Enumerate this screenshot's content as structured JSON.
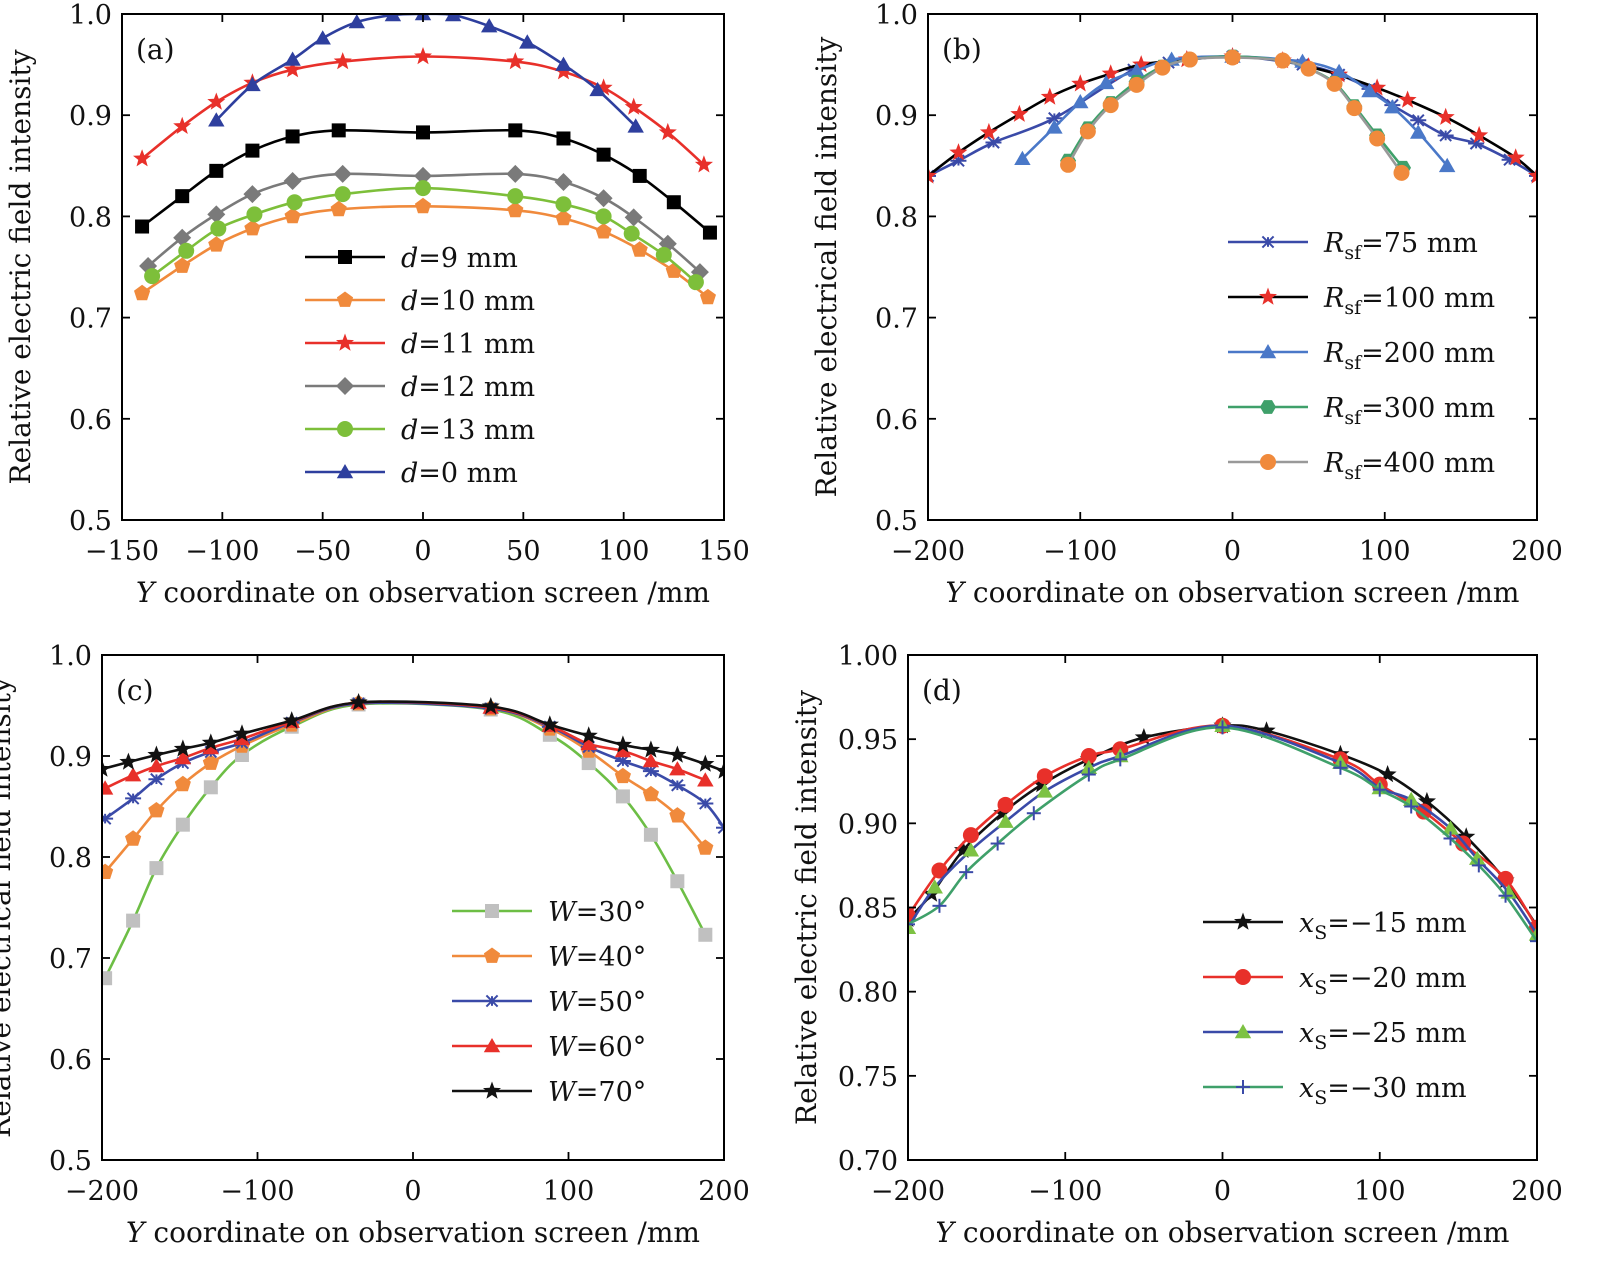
{
  "chart_data": [
    {
      "type": "line",
      "panel_label": "(a)",
      "xlabel_prefix": "Y",
      "xlabel": "coordinate on observation screen /mm",
      "ylabel": "Relative electric field intensity",
      "xlim": [
        -150,
        150
      ],
      "ylim": [
        0.5,
        1.0
      ],
      "xticks": [
        -150,
        -100,
        -50,
        0,
        50,
        100,
        150
      ],
      "xtick_labels": [
        "−150",
        "−100",
        "−50",
        "0",
        "50",
        "100",
        "150"
      ],
      "yticks": [
        0.5,
        0.6,
        0.7,
        0.8,
        0.9,
        1.0
      ],
      "ytick_labels": [
        "0.5",
        "0.6",
        "0.7",
        "0.8",
        "0.9",
        "1.0"
      ],
      "legend_position": "center",
      "series": [
        {
          "var": "d",
          "rest": "=9 mm",
          "color": "#000000",
          "marker": "square",
          "x": [
            -140,
            -120,
            -103,
            -85,
            -65,
            -42,
            0,
            46,
            70,
            90,
            108,
            125,
            143
          ],
          "y": [
            0.79,
            0.82,
            0.845,
            0.865,
            0.879,
            0.885,
            0.883,
            0.885,
            0.877,
            0.861,
            0.84,
            0.814,
            0.784
          ]
        },
        {
          "var": "d",
          "rest": "=10 mm",
          "color": "#F08A3C",
          "marker": "pentagon",
          "x": [
            -140,
            -120,
            -103,
            -85,
            -65,
            -42,
            0,
            46,
            70,
            90,
            108,
            125,
            142
          ],
          "y": [
            0.724,
            0.751,
            0.772,
            0.788,
            0.8,
            0.807,
            0.81,
            0.806,
            0.798,
            0.785,
            0.767,
            0.746,
            0.72
          ]
        },
        {
          "var": "d",
          "rest": "=11 mm",
          "color": "#E8302A",
          "marker": "star",
          "x": [
            -140,
            -120,
            -103,
            -85,
            -65,
            -40,
            0,
            46,
            70,
            90,
            105,
            122,
            140
          ],
          "y": [
            0.857,
            0.889,
            0.913,
            0.932,
            0.945,
            0.953,
            0.958,
            0.953,
            0.943,
            0.927,
            0.908,
            0.883,
            0.851
          ]
        },
        {
          "var": "d",
          "rest": "=12 mm",
          "color": "#7A7A7A",
          "marker": "diamond",
          "x": [
            -137,
            -120,
            -103,
            -85,
            -65,
            -40,
            0,
            46,
            70,
            90,
            105,
            122,
            138
          ],
          "y": [
            0.751,
            0.779,
            0.802,
            0.822,
            0.835,
            0.842,
            0.84,
            0.842,
            0.834,
            0.818,
            0.799,
            0.773,
            0.745
          ]
        },
        {
          "var": "d",
          "rest": "=13 mm",
          "color": "#7DBF3A",
          "marker": "circle",
          "x": [
            -135,
            -118,
            -102,
            -84,
            -64,
            -40,
            0,
            46,
            70,
            90,
            104,
            120,
            136
          ],
          "y": [
            0.741,
            0.766,
            0.788,
            0.802,
            0.814,
            0.822,
            0.828,
            0.82,
            0.812,
            0.8,
            0.783,
            0.762,
            0.735
          ]
        },
        {
          "var": "d",
          "rest": "=0 mm",
          "color": "#2E3F9E",
          "marker": "triangle",
          "x": [
            -103,
            -85,
            -65,
            -50,
            -33,
            -15,
            0,
            15,
            33,
            52,
            70,
            87,
            106
          ],
          "y": [
            0.895,
            0.93,
            0.955,
            0.976,
            0.992,
            0.999,
            1.0,
            0.999,
            0.988,
            0.972,
            0.95,
            0.925,
            0.889
          ]
        }
      ]
    },
    {
      "type": "line",
      "panel_label": "(b)",
      "xlabel_prefix": "Y",
      "xlabel": "coordinate on observation screen /mm",
      "ylabel": "Relative electrical field intensity",
      "xlim": [
        -200,
        200
      ],
      "ylim": [
        0.5,
        1.0
      ],
      "xticks": [
        -200,
        -100,
        0,
        100,
        200
      ],
      "xtick_labels": [
        "−200",
        "−100",
        "0",
        "100",
        "200"
      ],
      "yticks": [
        0.5,
        0.6,
        0.7,
        0.8,
        0.9,
        1.0
      ],
      "ytick_labels": [
        "0.5",
        "0.6",
        "0.7",
        "0.8",
        "0.9",
        "1.0"
      ],
      "legend_position": "lower-right",
      "series": [
        {
          "var": "R",
          "sub": "sf",
          "rest": "=75 mm",
          "color": "#3A4AA8",
          "marker": "asterisk",
          "x": [
            -200,
            -180,
            -157,
            -117,
            -65,
            -42,
            0,
            46,
            70,
            90,
            105,
            122,
            140,
            160,
            182,
            200
          ],
          "y": [
            0.84,
            0.855,
            0.873,
            0.897,
            0.945,
            0.952,
            0.958,
            0.95,
            0.94,
            0.926,
            0.91,
            0.895,
            0.88,
            0.872,
            0.856,
            0.84
          ]
        },
        {
          "var": "R",
          "sub": "sf",
          "rest": "=100 mm",
          "color": "#E8302A",
          "line_color": "#000000",
          "marker": "star",
          "x": [
            -200,
            -180,
            -160,
            -140,
            -120,
            -100,
            -80,
            -60,
            -30,
            0,
            33,
            50,
            70,
            95,
            115,
            140,
            162,
            186,
            200
          ],
          "y": [
            0.84,
            0.863,
            0.883,
            0.901,
            0.918,
            0.931,
            0.941,
            0.95,
            0.955,
            0.958,
            0.954,
            0.948,
            0.94,
            0.927,
            0.915,
            0.898,
            0.88,
            0.858,
            0.84
          ]
        },
        {
          "var": "R",
          "sub": "sf",
          "rest": "=200 mm",
          "color": "#4A78C8",
          "marker": "triangle",
          "x": [
            -138,
            -117,
            -100,
            -83,
            -63,
            -40,
            0,
            46,
            70,
            90,
            105,
            122,
            141
          ],
          "y": [
            0.857,
            0.888,
            0.913,
            0.932,
            0.944,
            0.955,
            0.958,
            0.953,
            0.943,
            0.924,
            0.908,
            0.883,
            0.85
          ]
        },
        {
          "var": "R",
          "sub": "sf",
          "rest": "=300 mm",
          "color": "#3FA06A",
          "marker": "hexagon",
          "x": [
            -108,
            -95,
            -80,
            -63,
            -46,
            -28,
            0,
            33,
            50,
            67,
            80,
            95,
            112
          ],
          "y": [
            0.855,
            0.887,
            0.912,
            0.933,
            0.948,
            0.955,
            0.958,
            0.954,
            0.946,
            0.932,
            0.909,
            0.88,
            0.848
          ]
        },
        {
          "var": "R",
          "sub": "sf",
          "rest": "=400 mm",
          "color": "#F08A3C",
          "line_color": "#999999",
          "marker": "circle",
          "x": [
            -108,
            -95,
            -80,
            -63,
            -46,
            -28,
            0,
            33,
            50,
            67,
            80,
            95,
            111
          ],
          "y": [
            0.851,
            0.884,
            0.91,
            0.93,
            0.947,
            0.955,
            0.957,
            0.954,
            0.946,
            0.931,
            0.907,
            0.877,
            0.843
          ]
        }
      ]
    },
    {
      "type": "line",
      "panel_label": "(c)",
      "xlabel_prefix": "Y",
      "xlabel": "coordinate on observation screen /mm",
      "ylabel": "Relative electrical field intensity",
      "xlim": [
        -200,
        200
      ],
      "ylim": [
        0.5,
        1.0
      ],
      "xticks": [
        -200,
        -100,
        0,
        100,
        200
      ],
      "xtick_labels": [
        "−200",
        "−100",
        "0",
        "100",
        "200"
      ],
      "yticks": [
        0.5,
        0.6,
        0.7,
        0.8,
        0.9,
        1.0
      ],
      "ytick_labels": [
        "0.5",
        "0.6",
        "0.7",
        "0.8",
        "0.9",
        "1.0"
      ],
      "legend_position": "lower-right",
      "series": [
        {
          "var": "W",
          "rest": "=30°",
          "color": "#C0C0C0",
          "line_color": "#6DBE45",
          "marker": "square",
          "x": [
            -198,
            -180,
            -165,
            -148,
            -130,
            -110,
            -78,
            -35,
            50,
            88,
            113,
            135,
            153,
            170,
            188
          ],
          "y": [
            0.68,
            0.737,
            0.789,
            0.832,
            0.869,
            0.901,
            0.929,
            0.951,
            0.946,
            0.921,
            0.893,
            0.86,
            0.822,
            0.776,
            0.723
          ]
        },
        {
          "var": "W",
          "rest": "=40°",
          "color": "#F08A3C",
          "marker": "pentagon",
          "x": [
            -198,
            -180,
            -165,
            -148,
            -130,
            -110,
            -78,
            -35,
            50,
            88,
            113,
            135,
            153,
            170,
            188
          ],
          "y": [
            0.785,
            0.818,
            0.846,
            0.872,
            0.893,
            0.91,
            0.931,
            0.952,
            0.947,
            0.927,
            0.905,
            0.88,
            0.862,
            0.841,
            0.809
          ]
        },
        {
          "var": "W",
          "rest": "=50°",
          "color": "#3A4AA8",
          "marker": "asterisk",
          "x": [
            -198,
            -180,
            -165,
            -148,
            -130,
            -110,
            -78,
            -35,
            50,
            88,
            113,
            135,
            153,
            170,
            188,
            200
          ],
          "y": [
            0.838,
            0.858,
            0.877,
            0.893,
            0.904,
            0.913,
            0.933,
            0.952,
            0.947,
            0.929,
            0.909,
            0.895,
            0.885,
            0.871,
            0.853,
            0.829
          ]
        },
        {
          "var": "W",
          "rest": "=60°",
          "color": "#E8302A",
          "marker": "triangle",
          "x": [
            -198,
            -180,
            -165,
            -148,
            -130,
            -110,
            -78,
            -35,
            50,
            88,
            113,
            135,
            153,
            170,
            188
          ],
          "y": [
            0.868,
            0.881,
            0.89,
            0.898,
            0.908,
            0.917,
            0.934,
            0.953,
            0.948,
            0.93,
            0.912,
            0.905,
            0.895,
            0.887,
            0.876
          ]
        },
        {
          "var": "W",
          "rest": "=70°",
          "color": "#111111",
          "marker": "star",
          "x": [
            -200,
            -183,
            -165,
            -148,
            -130,
            -110,
            -78,
            -35,
            50,
            88,
            113,
            135,
            153,
            170,
            188,
            200
          ],
          "y": [
            0.887,
            0.894,
            0.901,
            0.907,
            0.913,
            0.922,
            0.935,
            0.953,
            0.949,
            0.931,
            0.92,
            0.911,
            0.906,
            0.901,
            0.892,
            0.885
          ]
        }
      ]
    },
    {
      "type": "line",
      "panel_label": "(d)",
      "xlabel_prefix": "Y",
      "xlabel": "coordinate on observation screen /mm",
      "ylabel": "Relative electric field intensity",
      "xlim": [
        -200,
        200
      ],
      "ylim": [
        0.7,
        1.0
      ],
      "xticks": [
        -200,
        -100,
        0,
        100,
        200
      ],
      "xtick_labels": [
        "−200",
        "−100",
        "0",
        "100",
        "200"
      ],
      "yticks": [
        0.7,
        0.75,
        0.8,
        0.85,
        0.9,
        0.95,
        1.0
      ],
      "ytick_labels": [
        "0.70",
        "0.75",
        "0.80",
        "0.85",
        "0.90",
        "0.95",
        "1.00"
      ],
      "legend_position": "lower-right",
      "series": [
        {
          "var": "x",
          "sub": "S",
          "rest": "=−15 mm",
          "color": "#111111",
          "marker": "star",
          "x": [
            -200,
            -185,
            -165,
            -140,
            -115,
            -85,
            -50,
            0,
            28,
            75,
            105,
            130,
            155,
            180,
            200
          ],
          "y": [
            0.843,
            0.858,
            0.884,
            0.906,
            0.923,
            0.938,
            0.951,
            0.958,
            0.955,
            0.941,
            0.929,
            0.913,
            0.892,
            0.866,
            0.839
          ]
        },
        {
          "var": "x",
          "sub": "S",
          "rest": "=−20 mm",
          "color": "#E8302A",
          "marker": "circle",
          "x": [
            -200,
            -180,
            -160,
            -138,
            -113,
            -85,
            -65,
            0,
            75,
            100,
            128,
            153,
            180,
            200
          ],
          "y": [
            0.845,
            0.872,
            0.893,
            0.911,
            0.928,
            0.94,
            0.944,
            0.958,
            0.938,
            0.923,
            0.907,
            0.888,
            0.867,
            0.838
          ]
        },
        {
          "var": "x",
          "sub": "S",
          "rest": "=−25 mm",
          "color": "#7DC243",
          "line_color": "#3A4AA8",
          "marker": "triangle",
          "x": [
            -200,
            -183,
            -160,
            -138,
            -113,
            -85,
            -65,
            0,
            75,
            100,
            120,
            145,
            162,
            182,
            200
          ],
          "y": [
            0.838,
            0.862,
            0.884,
            0.901,
            0.919,
            0.933,
            0.94,
            0.958,
            0.936,
            0.921,
            0.914,
            0.897,
            0.879,
            0.859,
            0.834
          ]
        },
        {
          "var": "x",
          "sub": "S",
          "rest": "=−30 mm",
          "color": "#3A4AA8",
          "line_color": "#3FA06A",
          "marker": "plus",
          "x": [
            -200,
            -180,
            -163,
            -143,
            -120,
            -85,
            -65,
            0,
            75,
            100,
            120,
            145,
            163,
            180,
            200
          ],
          "y": [
            0.84,
            0.851,
            0.871,
            0.888,
            0.906,
            0.929,
            0.938,
            0.957,
            0.933,
            0.92,
            0.91,
            0.891,
            0.875,
            0.857,
            0.83
          ]
        }
      ]
    }
  ]
}
